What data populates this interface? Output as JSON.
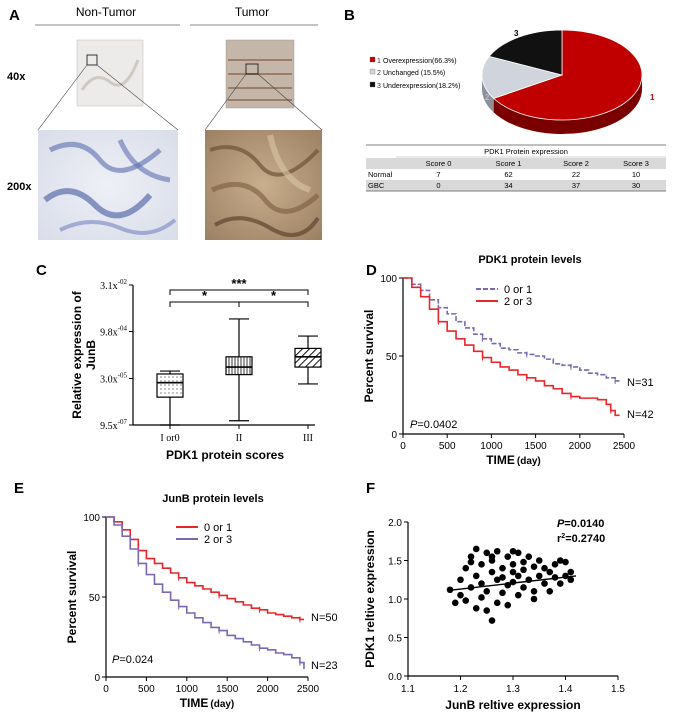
{
  "panel_A": {
    "letter": "A",
    "col_labels": [
      "Non-Tumor",
      "Tumor"
    ],
    "row_labels": [
      "40x",
      "200x"
    ]
  },
  "chart_data": [
    {
      "id": "B",
      "type": "pie",
      "letter": "B",
      "labels": [
        "Overexpression(66.3%)",
        "Unchanged (15.5%)",
        "Underexpression(18.2%)"
      ],
      "legend_numbers": [
        "1",
        "2",
        "3"
      ],
      "values": [
        66.3,
        15.5,
        18.2
      ],
      "slice_labels": [
        "1",
        "2",
        "3"
      ],
      "colors": [
        "#c00000",
        "#d0d4dc",
        "#111111"
      ],
      "legend_placement": "left",
      "table": {
        "title": "PDK1 Protein expression",
        "headers": [
          "",
          "Score 0",
          "Score 1",
          "Score 2",
          "Score 3"
        ],
        "rows": [
          [
            "Normal",
            "7",
            "62",
            "22",
            "10"
          ],
          [
            "GBC",
            "0",
            "34",
            "37",
            "30"
          ]
        ]
      }
    },
    {
      "id": "C",
      "type": "box",
      "letter": "C",
      "xlabel": "PDK1 protein scores",
      "ylabel_lines": [
        "Relative expression of",
        "JunB"
      ],
      "categories": [
        "I or0",
        "II",
        "III"
      ],
      "y_scale": "log",
      "yticks": [
        {
          "mant": "9.5x",
          "exp": "-07",
          "value": 9.5e-07
        },
        {
          "mant": "3.0x",
          "exp": "-05",
          "value": 3e-05
        },
        {
          "mant": "9.8x",
          "exp": "-04",
          "value": 0.00098
        },
        {
          "mant": "3.1x",
          "exp": "-02",
          "value": 0.031
        }
      ],
      "ylim": [
        9.5e-07,
        0.031
      ],
      "boxes": [
        {
          "min": 9.5e-07,
          "q1": 7.5e-06,
          "median": 2.2e-05,
          "q3": 4.2e-05,
          "max": 5.2e-05
        },
        {
          "min": 1.3e-06,
          "q1": 4e-05,
          "median": 7e-05,
          "q3": 0.00015,
          "max": 0.0025
        },
        {
          "min": 2e-05,
          "q1": 7e-05,
          "median": 0.00015,
          "q3": 0.00028,
          "max": 0.0007
        }
      ],
      "significance": [
        {
          "from": 0,
          "to": 2,
          "label": "***"
        },
        {
          "from": 0,
          "to": 1,
          "label": "*"
        },
        {
          "from": 1,
          "to": 2,
          "label": "*"
        }
      ]
    },
    {
      "id": "D",
      "type": "line",
      "letter": "D",
      "title": "PDK1 protein levels",
      "xlabel": "TIME",
      "xlabel_unit": "(day)",
      "ylabel": "Percent survival",
      "xlim": [
        0,
        2500
      ],
      "ylim": [
        0,
        100
      ],
      "xticks": [
        0,
        500,
        1000,
        1500,
        2000,
        2500
      ],
      "yticks": [
        0,
        50,
        100
      ],
      "p_label": "P",
      "p_value": "=0.0402",
      "series": [
        {
          "name": "0 or 1",
          "color": "#7b68b0",
          "dashed": true,
          "n_label": "N=31",
          "x": [
            0,
            100,
            200,
            300,
            400,
            500,
            600,
            700,
            800,
            900,
            1000,
            1100,
            1200,
            1300,
            1400,
            1500,
            1600,
            1700,
            1800,
            1900,
            2000,
            2100,
            2200,
            2300,
            2400,
            2450
          ],
          "y": [
            100,
            96,
            92,
            86,
            81,
            77,
            72,
            68,
            64,
            61,
            58,
            55,
            54,
            52,
            51,
            50,
            48,
            45,
            44,
            43,
            41,
            39,
            38,
            36,
            34,
            34
          ]
        },
        {
          "name": "2 or 3",
          "color": "#e8262a",
          "dashed": false,
          "n_label": "N=42",
          "x": [
            0,
            100,
            200,
            300,
            400,
            500,
            600,
            700,
            800,
            900,
            1000,
            1100,
            1200,
            1300,
            1400,
            1500,
            1600,
            1700,
            1800,
            1900,
            2000,
            2100,
            2200,
            2300,
            2350,
            2400,
            2450
          ],
          "y": [
            100,
            94,
            88,
            80,
            72,
            66,
            61,
            57,
            53,
            49,
            46,
            43,
            41,
            38,
            36,
            34,
            31,
            29,
            26,
            24,
            23,
            23,
            22,
            19,
            15,
            12,
            12
          ]
        }
      ]
    },
    {
      "id": "E",
      "type": "line",
      "letter": "E",
      "title": "JunB protein levels",
      "xlabel": "TIME",
      "xlabel_unit": "(day)",
      "ylabel": "Percent survival",
      "xlim": [
        0,
        2500
      ],
      "ylim": [
        0,
        100
      ],
      "xticks": [
        0,
        500,
        1000,
        1500,
        2000,
        2500
      ],
      "yticks": [
        0,
        50,
        100
      ],
      "p_label": "P",
      "p_value": "=0.024",
      "series": [
        {
          "name": "0 or 1",
          "color": "#e8262a",
          "dashed": false,
          "n_label": "N=50",
          "x": [
            0,
            100,
            200,
            300,
            400,
            500,
            600,
            700,
            800,
            900,
            1000,
            1100,
            1200,
            1300,
            1400,
            1500,
            1600,
            1700,
            1800,
            1900,
            2000,
            2100,
            2200,
            2300,
            2400,
            2450
          ],
          "y": [
            100,
            97,
            92,
            86,
            79,
            74,
            71,
            68,
            65,
            62,
            59,
            57,
            55,
            53,
            51,
            49,
            47,
            45,
            43,
            42,
            40,
            39,
            38,
            37,
            36,
            36
          ]
        },
        {
          "name": "2 or 3",
          "color": "#7b68b0",
          "dashed": false,
          "n_label": "N=23",
          "x": [
            0,
            100,
            200,
            300,
            400,
            500,
            600,
            700,
            800,
            900,
            1000,
            1100,
            1200,
            1300,
            1400,
            1500,
            1600,
            1700,
            1800,
            1900,
            2000,
            2100,
            2200,
            2300,
            2400,
            2450
          ],
          "y": [
            100,
            95,
            88,
            80,
            71,
            64,
            58,
            53,
            48,
            44,
            40,
            37,
            34,
            31,
            29,
            26,
            24,
            22,
            20,
            18,
            17,
            15,
            14,
            12,
            9,
            5
          ]
        }
      ]
    },
    {
      "id": "F",
      "type": "scatter",
      "letter": "F",
      "xlabel": "JunB reltive expression",
      "ylabel": "PDK1 reltive expression",
      "xlim": [
        1.1,
        1.5
      ],
      "ylim": [
        0.0,
        2.0
      ],
      "xticks": [
        "1.1",
        "1.2",
        "1.3",
        "1.4",
        "1.5"
      ],
      "yticks": [
        "0.0",
        "0.5",
        "1.0",
        "1.5",
        "2.0"
      ],
      "p_label": "P",
      "p_value": "=0.0140",
      "r2_label": "r",
      "r2_value": "=0.2740",
      "fit": {
        "x": [
          1.175,
          1.42
        ],
        "y": [
          1.11,
          1.3
        ]
      },
      "x": [
        1.18,
        1.19,
        1.2,
        1.2,
        1.21,
        1.21,
        1.22,
        1.22,
        1.23,
        1.23,
        1.23,
        1.24,
        1.24,
        1.24,
        1.25,
        1.25,
        1.25,
        1.26,
        1.26,
        1.26,
        1.27,
        1.27,
        1.27,
        1.28,
        1.28,
        1.28,
        1.29,
        1.29,
        1.29,
        1.3,
        1.3,
        1.3,
        1.31,
        1.31,
        1.31,
        1.32,
        1.32,
        1.32,
        1.33,
        1.33,
        1.34,
        1.34,
        1.35,
        1.35,
        1.36,
        1.36,
        1.37,
        1.37,
        1.38,
        1.38,
        1.39,
        1.39,
        1.4,
        1.4,
        1.41,
        1.41,
        1.22,
        1.26,
        1.3,
        1.34
      ],
      "y": [
        1.12,
        0.95,
        1.25,
        1.05,
        1.4,
        0.98,
        1.55,
        1.15,
        1.65,
        1.3,
        0.88,
        1.2,
        1.45,
        1.02,
        1.6,
        1.1,
        0.85,
        1.35,
        0.72,
        1.5,
        1.25,
        1.62,
        0.95,
        1.4,
        1.08,
        1.28,
        1.55,
        1.18,
        0.92,
        1.45,
        1.22,
        1.35,
        1.6,
        1.05,
        1.3,
        1.48,
        1.15,
        1.38,
        1.25,
        1.55,
        1.1,
        1.42,
        1.3,
        1.5,
        1.2,
        1.4,
        1.35,
        1.1,
        1.45,
        1.28,
        1.5,
        1.2,
        1.3,
        1.48,
        1.35,
        1.25,
        1.48,
        1.55,
        1.62,
        1.0
      ]
    }
  ]
}
